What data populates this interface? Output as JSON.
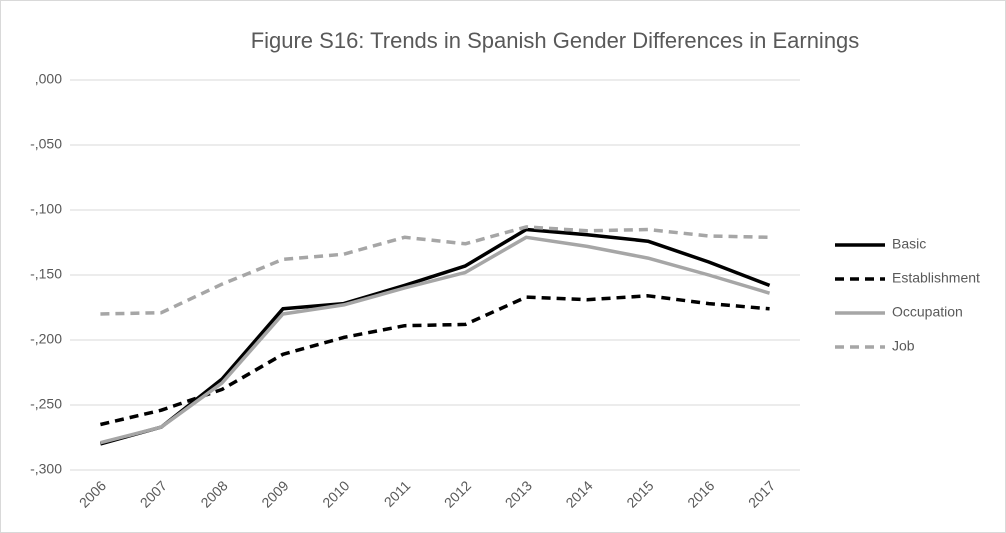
{
  "chart_data": {
    "type": "line",
    "title": "Figure S16: Trends in Spanish Gender Differences in Earnings",
    "categories": [
      "2006",
      "2007",
      "2008",
      "2009",
      "2010",
      "2011",
      "2012",
      "2013",
      "2014",
      "2015",
      "2016",
      "2017"
    ],
    "series": [
      {
        "name": "Basic",
        "color": "#000000",
        "dashed": false,
        "values": [
          -0.28,
          -0.267,
          -0.23,
          -0.176,
          -0.172,
          -0.158,
          -0.143,
          -0.115,
          -0.119,
          -0.124,
          -0.14,
          -0.158
        ]
      },
      {
        "name": "Establishment",
        "color": "#000000",
        "dashed": true,
        "values": [
          -0.265,
          -0.254,
          -0.238,
          -0.211,
          -0.198,
          -0.189,
          -0.188,
          -0.167,
          -0.169,
          -0.166,
          -0.172,
          -0.176
        ]
      },
      {
        "name": "Occupation",
        "color": "#a6a6a6",
        "dashed": false,
        "values": [
          -0.279,
          -0.267,
          -0.233,
          -0.18,
          -0.173,
          -0.16,
          -0.148,
          -0.121,
          -0.128,
          -0.137,
          -0.15,
          -0.164
        ]
      },
      {
        "name": "Job",
        "color": "#a6a6a6",
        "dashed": true,
        "values": [
          -0.18,
          -0.179,
          -0.157,
          -0.138,
          -0.134,
          -0.121,
          -0.126,
          -0.113,
          -0.116,
          -0.115,
          -0.12,
          -0.121
        ]
      }
    ],
    "ylim": [
      -0.3,
      0
    ],
    "yticks": [
      {
        "value": -0.3,
        "label": "-,300"
      },
      {
        "value": -0.25,
        "label": "-,250"
      },
      {
        "value": -0.2,
        "label": "-,200"
      },
      {
        "value": -0.15,
        "label": "-,150"
      },
      {
        "value": -0.1,
        "label": "-,100"
      },
      {
        "value": -0.05,
        "label": "-,050"
      },
      {
        "value": 0,
        "label": ",000"
      }
    ],
    "grid": true,
    "legend": "right"
  }
}
